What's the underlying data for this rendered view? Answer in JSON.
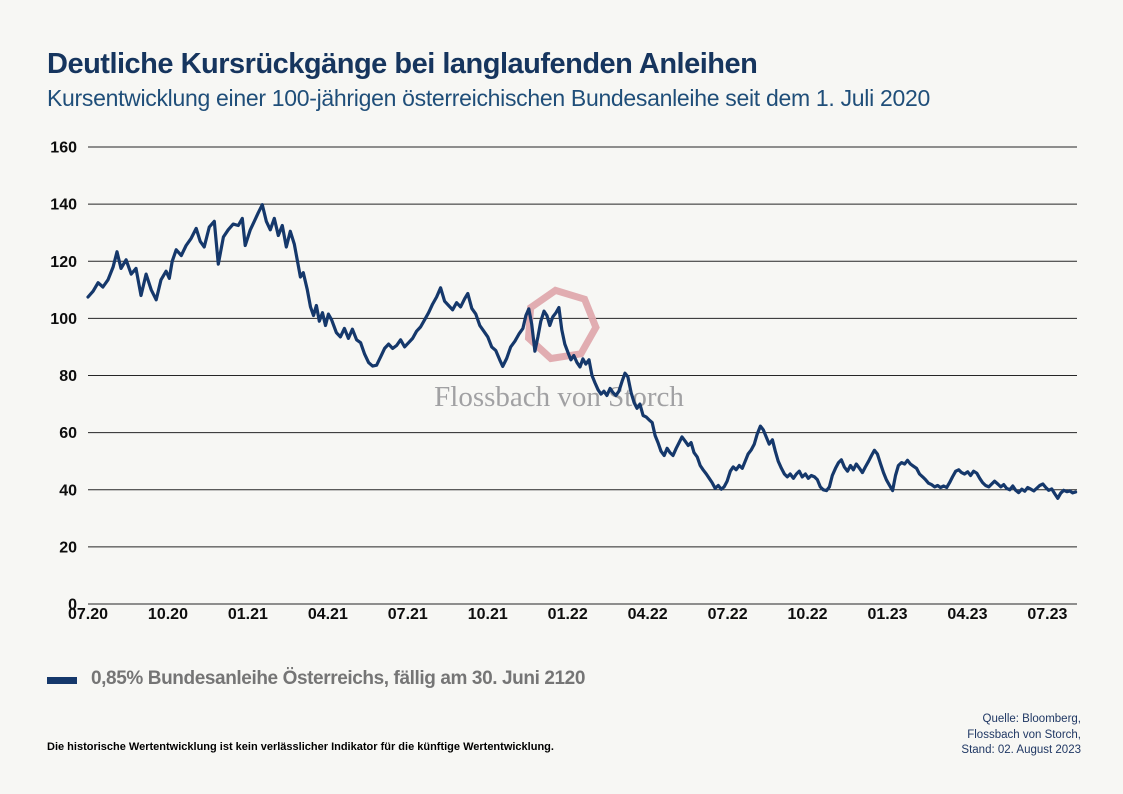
{
  "page": {
    "title": "Deutliche Kursrückgänge bei langlaufenden Anleihen",
    "subtitle": "Kursentwicklung einer 100-jährigen österreichischen Bundesanleihe seit dem 1. Juli 2020"
  },
  "colors": {
    "background": "#f7f7f4",
    "title": "#16355e",
    "subtitle": "#1f4e79",
    "line": "#15386b",
    "grid": "#262626",
    "axis_text": "#0d0d0d",
    "legend_text": "#757575",
    "watermark_text": "#a1a1a3",
    "watermark_logo": "#dfa9ad",
    "source_text": "#203864"
  },
  "legend": {
    "swatch": "line",
    "label": "0,85% Bundesanleihe Österreichs, fällig am 30. Juni 2120"
  },
  "watermark": {
    "text": "Flossbach von Storch",
    "logo": "heptagon-outline"
  },
  "footer": {
    "disclaimer": "Die historische Wertentwicklung ist kein verlässlicher Indikator für die künftige Wertentwicklung.",
    "source_lines": [
      "Quelle: Bloomberg,",
      "Flossbach von Storch,",
      "Stand: 02. August 2023"
    ]
  },
  "chart_data": {
    "type": "line",
    "title": "Kursentwicklung einer 100-jährigen österreichischen Bundesanleihe seit dem 1. Juli 2020",
    "xlabel": "",
    "ylabel": "",
    "x_unit": "months since 2020-07-01",
    "ylim": [
      0,
      160
    ],
    "yticks": [
      0,
      20,
      40,
      60,
      80,
      100,
      120,
      140,
      160
    ],
    "grid": "horizontal",
    "legend_position": "bottom-left",
    "xticks": [
      {
        "t": 0,
        "label": "07.20"
      },
      {
        "t": 3,
        "label": "10.20"
      },
      {
        "t": 6,
        "label": "01.21"
      },
      {
        "t": 9,
        "label": "04.21"
      },
      {
        "t": 12,
        "label": "07.21"
      },
      {
        "t": 15,
        "label": "10.21"
      },
      {
        "t": 18,
        "label": "01.22"
      },
      {
        "t": 21,
        "label": "04.22"
      },
      {
        "t": 24,
        "label": "07.22"
      },
      {
        "t": 27,
        "label": "10.22"
      },
      {
        "t": 30,
        "label": "01.23"
      },
      {
        "t": 33,
        "label": "04.23"
      },
      {
        "t": 36,
        "label": "07.23"
      }
    ],
    "series": [
      {
        "name": "0,85% Bundesanleihe Österreichs, fällig am 30. Juni 2120",
        "color": "#15386b",
        "points": [
          [
            0,
            107.5
          ],
          [
            0.19,
            109.5
          ],
          [
            0.38,
            112.5
          ],
          [
            0.56,
            111
          ],
          [
            0.75,
            113.5
          ],
          [
            0.94,
            118
          ],
          [
            1.09,
            123.3
          ],
          [
            1.24,
            117.5
          ],
          [
            1.43,
            120.5
          ],
          [
            1.62,
            115.5
          ],
          [
            1.8,
            117.5
          ],
          [
            1.99,
            108
          ],
          [
            2.18,
            115.5
          ],
          [
            2.37,
            110
          ],
          [
            2.56,
            106.5
          ],
          [
            2.74,
            113.5
          ],
          [
            2.93,
            116.5
          ],
          [
            3.05,
            114
          ],
          [
            3.16,
            120
          ],
          [
            3.31,
            124
          ],
          [
            3.5,
            122
          ],
          [
            3.68,
            125.5
          ],
          [
            3.87,
            128
          ],
          [
            4.06,
            131.5
          ],
          [
            4.21,
            127
          ],
          [
            4.36,
            125
          ],
          [
            4.55,
            132
          ],
          [
            4.74,
            134
          ],
          [
            4.89,
            119
          ],
          [
            5.08,
            128.5
          ],
          [
            5.26,
            131
          ],
          [
            5.45,
            133
          ],
          [
            5.64,
            132.5
          ],
          [
            5.79,
            135
          ],
          [
            5.9,
            125.5
          ],
          [
            6.09,
            131
          ],
          [
            6.24,
            134
          ],
          [
            6.39,
            137
          ],
          [
            6.54,
            139.8
          ],
          [
            6.69,
            134
          ],
          [
            6.84,
            131
          ],
          [
            6.99,
            135
          ],
          [
            7.14,
            129
          ],
          [
            7.29,
            132.5
          ],
          [
            7.44,
            125
          ],
          [
            7.59,
            130.5
          ],
          [
            7.74,
            126
          ],
          [
            7.86,
            120
          ],
          [
            7.97,
            114.5
          ],
          [
            8.08,
            116
          ],
          [
            8.23,
            110
          ],
          [
            8.35,
            104
          ],
          [
            8.46,
            101
          ],
          [
            8.57,
            104.5
          ],
          [
            8.68,
            99
          ],
          [
            8.8,
            102
          ],
          [
            8.91,
            97.5
          ],
          [
            9.02,
            101.5
          ],
          [
            9.14,
            99.5
          ],
          [
            9.32,
            95
          ],
          [
            9.47,
            93.5
          ],
          [
            9.62,
            96.5
          ],
          [
            9.77,
            93
          ],
          [
            9.92,
            96.2
          ],
          [
            10.08,
            92.5
          ],
          [
            10.23,
            91.5
          ],
          [
            10.38,
            87.5
          ],
          [
            10.53,
            84.5
          ],
          [
            10.68,
            83.3
          ],
          [
            10.83,
            83.6
          ],
          [
            10.98,
            86.5
          ],
          [
            11.13,
            89.5
          ],
          [
            11.28,
            91
          ],
          [
            11.43,
            89.5
          ],
          [
            11.58,
            90.5
          ],
          [
            11.73,
            92.5
          ],
          [
            11.88,
            90
          ],
          [
            12.03,
            91.5
          ],
          [
            12.18,
            93
          ],
          [
            12.33,
            95.5
          ],
          [
            12.48,
            97
          ],
          [
            12.63,
            99.5
          ],
          [
            12.78,
            102
          ],
          [
            12.93,
            105
          ],
          [
            13.08,
            107.5
          ],
          [
            13.23,
            110.7
          ],
          [
            13.38,
            106
          ],
          [
            13.53,
            104.5
          ],
          [
            13.68,
            103
          ],
          [
            13.83,
            105.5
          ],
          [
            13.98,
            104
          ],
          [
            14.14,
            107
          ],
          [
            14.25,
            108.7
          ],
          [
            14.4,
            103.5
          ],
          [
            14.55,
            101.5
          ],
          [
            14.7,
            97.5
          ],
          [
            14.85,
            95.5
          ],
          [
            15,
            93.5
          ],
          [
            15.15,
            90
          ],
          [
            15.3,
            88.8
          ],
          [
            15.45,
            85.5
          ],
          [
            15.56,
            83.2
          ],
          [
            15.71,
            86
          ],
          [
            15.86,
            90
          ],
          [
            16.02,
            92
          ],
          [
            16.17,
            94.5
          ],
          [
            16.32,
            96.5
          ],
          [
            16.43,
            101
          ],
          [
            16.54,
            103.3
          ],
          [
            16.65,
            98
          ],
          [
            16.77,
            88.5
          ],
          [
            16.88,
            93.5
          ],
          [
            16.99,
            99
          ],
          [
            17.11,
            102.5
          ],
          [
            17.22,
            101
          ],
          [
            17.33,
            97.5
          ],
          [
            17.44,
            100.5
          ],
          [
            17.56,
            102
          ],
          [
            17.67,
            103.8
          ],
          [
            17.78,
            96
          ],
          [
            17.89,
            91
          ],
          [
            18.01,
            88
          ],
          [
            18.12,
            85.5
          ],
          [
            18.23,
            87
          ],
          [
            18.35,
            84.5
          ],
          [
            18.46,
            83
          ],
          [
            18.57,
            85.8
          ],
          [
            18.68,
            84
          ],
          [
            18.8,
            85.5
          ],
          [
            18.91,
            80
          ],
          [
            19.02,
            77.5
          ],
          [
            19.14,
            75
          ],
          [
            19.25,
            73.5
          ],
          [
            19.36,
            74.5
          ],
          [
            19.47,
            73
          ],
          [
            19.59,
            75.5
          ],
          [
            19.7,
            74
          ],
          [
            19.81,
            73
          ],
          [
            19.92,
            74.5
          ],
          [
            20.04,
            78
          ],
          [
            20.15,
            80.8
          ],
          [
            20.26,
            79.5
          ],
          [
            20.38,
            74
          ],
          [
            20.49,
            70.5
          ],
          [
            20.6,
            68.5
          ],
          [
            20.71,
            70
          ],
          [
            20.83,
            66
          ],
          [
            20.94,
            65.5
          ],
          [
            21.05,
            64.5
          ],
          [
            21.17,
            63.5
          ],
          [
            21.28,
            59
          ],
          [
            21.39,
            56.5
          ],
          [
            21.5,
            53.5
          ],
          [
            21.62,
            52
          ],
          [
            21.73,
            54.5
          ],
          [
            21.84,
            53
          ],
          [
            21.95,
            52
          ],
          [
            22.07,
            54.5
          ],
          [
            22.18,
            56.5
          ],
          [
            22.29,
            58.5
          ],
          [
            22.41,
            57
          ],
          [
            22.52,
            55.5
          ],
          [
            22.63,
            56.5
          ],
          [
            22.74,
            53
          ],
          [
            22.86,
            51.5
          ],
          [
            22.97,
            48.5
          ],
          [
            23.08,
            47
          ],
          [
            23.2,
            45.5
          ],
          [
            23.31,
            44
          ],
          [
            23.42,
            42.5
          ],
          [
            23.53,
            40.5
          ],
          [
            23.65,
            41.5
          ],
          [
            23.76,
            40.2
          ],
          [
            23.87,
            41
          ],
          [
            23.98,
            43
          ],
          [
            24.1,
            46.5
          ],
          [
            24.21,
            48
          ],
          [
            24.32,
            47
          ],
          [
            24.44,
            48.5
          ],
          [
            24.55,
            47.5
          ],
          [
            24.66,
            50
          ],
          [
            24.77,
            52.5
          ],
          [
            24.89,
            54
          ],
          [
            25,
            56
          ],
          [
            25.11,
            59.5
          ],
          [
            25.23,
            62.3
          ],
          [
            25.34,
            61
          ],
          [
            25.45,
            58.5
          ],
          [
            25.56,
            56
          ],
          [
            25.68,
            57.5
          ],
          [
            25.79,
            53.5
          ],
          [
            25.9,
            50
          ],
          [
            26.02,
            47.5
          ],
          [
            26.13,
            45.5
          ],
          [
            26.24,
            44.5
          ],
          [
            26.35,
            45.5
          ],
          [
            26.47,
            44
          ],
          [
            26.58,
            45.5
          ],
          [
            26.69,
            46.5
          ],
          [
            26.8,
            44.5
          ],
          [
            26.92,
            45.5
          ],
          [
            27.03,
            44
          ],
          [
            27.14,
            45
          ],
          [
            27.26,
            44.5
          ],
          [
            27.37,
            43.5
          ],
          [
            27.48,
            41
          ],
          [
            27.59,
            40
          ],
          [
            27.71,
            39.7
          ],
          [
            27.82,
            41
          ],
          [
            27.93,
            45
          ],
          [
            28.05,
            47.5
          ],
          [
            28.16,
            49.5
          ],
          [
            28.27,
            50.5
          ],
          [
            28.38,
            48
          ],
          [
            28.5,
            46.5
          ],
          [
            28.61,
            48.5
          ],
          [
            28.72,
            47
          ],
          [
            28.83,
            49
          ],
          [
            28.95,
            47.5
          ],
          [
            29.06,
            46
          ],
          [
            29.17,
            48
          ],
          [
            29.29,
            50
          ],
          [
            29.4,
            52
          ],
          [
            29.51,
            53.8
          ],
          [
            29.62,
            52.5
          ],
          [
            29.74,
            49
          ],
          [
            29.85,
            46
          ],
          [
            29.96,
            43.5
          ],
          [
            30.08,
            41.5
          ],
          [
            30.19,
            39.7
          ],
          [
            30.3,
            45
          ],
          [
            30.41,
            48.5
          ],
          [
            30.53,
            49.5
          ],
          [
            30.64,
            49
          ],
          [
            30.75,
            50.3
          ],
          [
            30.86,
            49
          ],
          [
            30.98,
            48.2
          ],
          [
            31.09,
            47.5
          ],
          [
            31.2,
            45.5
          ],
          [
            31.32,
            44.5
          ],
          [
            31.43,
            43.5
          ],
          [
            31.54,
            42.3
          ],
          [
            31.65,
            41.8
          ],
          [
            31.77,
            41
          ],
          [
            31.88,
            41.5
          ],
          [
            31.99,
            40.8
          ],
          [
            32.11,
            41.3
          ],
          [
            32.22,
            40.8
          ],
          [
            32.33,
            42.5
          ],
          [
            32.44,
            44.5
          ],
          [
            32.56,
            46.5
          ],
          [
            32.67,
            47
          ],
          [
            32.78,
            46
          ],
          [
            32.89,
            45.5
          ],
          [
            33.01,
            46.3
          ],
          [
            33.12,
            45
          ],
          [
            33.23,
            46.5
          ],
          [
            33.35,
            45.8
          ],
          [
            33.46,
            44
          ],
          [
            33.57,
            42.5
          ],
          [
            33.68,
            41.5
          ],
          [
            33.8,
            41
          ],
          [
            33.91,
            42
          ],
          [
            34.02,
            43
          ],
          [
            34.14,
            42
          ],
          [
            34.25,
            41
          ],
          [
            34.36,
            41.8
          ],
          [
            34.47,
            40.5
          ],
          [
            34.59,
            40
          ],
          [
            34.7,
            41.3
          ],
          [
            34.81,
            39.8
          ],
          [
            34.92,
            39
          ],
          [
            35.04,
            40.2
          ],
          [
            35.15,
            39.5
          ],
          [
            35.26,
            40.8
          ],
          [
            35.38,
            40.2
          ],
          [
            35.49,
            39.6
          ],
          [
            35.6,
            40.5
          ],
          [
            35.71,
            41.5
          ],
          [
            35.83,
            42
          ],
          [
            35.94,
            40.8
          ],
          [
            36.05,
            39.8
          ],
          [
            36.16,
            40.3
          ],
          [
            36.28,
            38.5
          ],
          [
            36.39,
            37
          ],
          [
            36.5,
            38.8
          ],
          [
            36.61,
            39.8
          ],
          [
            36.73,
            39.3
          ],
          [
            36.84,
            39.6
          ],
          [
            36.95,
            38.9
          ],
          [
            37.06,
            39.2
          ]
        ]
      }
    ]
  }
}
